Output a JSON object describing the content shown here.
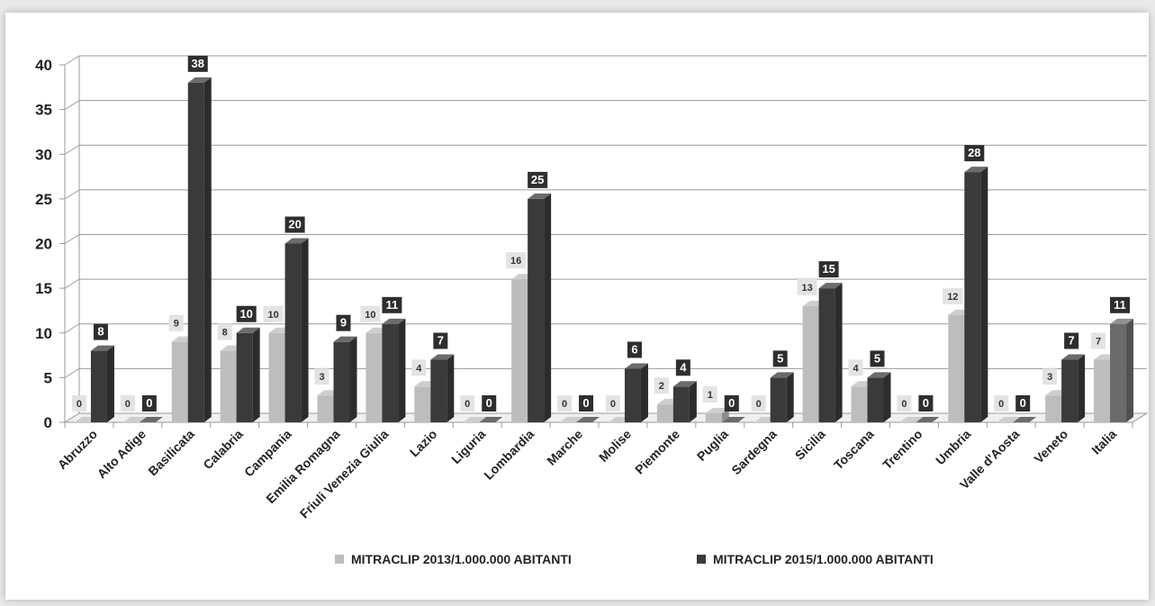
{
  "chart_data": {
    "type": "bar",
    "title": "",
    "xlabel": "",
    "ylabel": "",
    "ylim": [
      0,
      40
    ],
    "yticks": [
      0,
      5,
      10,
      15,
      20,
      25,
      30,
      35,
      40
    ],
    "grid": true,
    "legend_position": "bottom",
    "categories": [
      "Abruzzo",
      "Alto Adige",
      "Basilicata",
      "Calabria",
      "Campania",
      "Emilia Romagna",
      "Friuli Venezia Giulia",
      "Lazio",
      "Liguria",
      "Lombardia",
      "Marche",
      "Molise",
      "Piemonte",
      "Puglia",
      "Sardegna",
      "Sicilia",
      "Toscana",
      "Trentino",
      "Umbria",
      "Valle d'Aosta",
      "Veneto",
      "Italia"
    ],
    "series": [
      {
        "name": "MITRACLIP 2013/1.000.000 ABITANTI",
        "color": "#bdbdbd",
        "values": [
          0,
          0,
          9,
          8,
          10,
          3,
          10,
          4,
          0,
          16,
          0,
          0,
          2,
          1,
          0,
          13,
          4,
          0,
          12,
          0,
          3,
          7
        ],
        "labels": [
          "0",
          "0",
          "9",
          "8",
          "10",
          "3",
          "10",
          "4",
          "0",
          "16",
          "0",
          "0",
          "2",
          "1",
          "0",
          "13",
          "4",
          "0",
          "12",
          "0",
          "3",
          "7"
        ]
      },
      {
        "name": "MITRACLIP 2015/1.000.000 ABITANTI",
        "color": "#3a3a3a",
        "values": [
          8,
          0,
          38,
          10,
          20,
          9,
          11,
          7,
          0,
          25,
          0,
          6,
          4,
          0,
          5,
          15,
          5,
          0,
          28,
          0,
          7,
          11
        ],
        "labels": [
          "8",
          "0",
          "38",
          "10",
          "20",
          "9",
          "11",
          "7",
          "0",
          "25",
          "0",
          "6",
          "4",
          "0",
          "5",
          "15",
          "5",
          "0",
          "28",
          "0",
          "7",
          "11"
        ]
      }
    ]
  }
}
